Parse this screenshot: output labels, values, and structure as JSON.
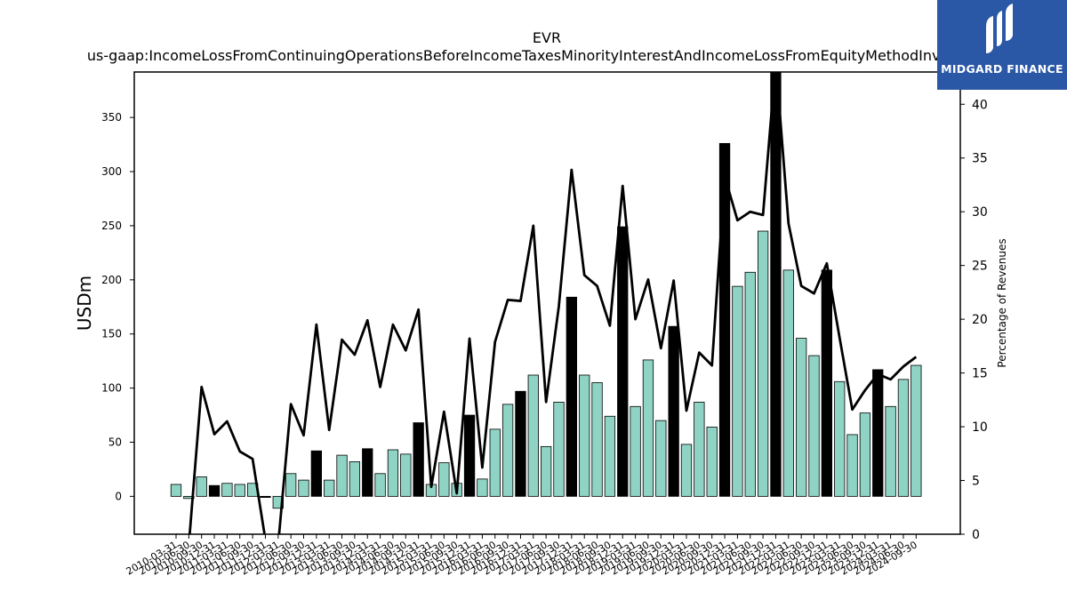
{
  "brand": {
    "name": "MIDGARD FINANCE",
    "bg_color": "#2a58a6"
  },
  "chart_data": {
    "type": "bar",
    "title": "EVR",
    "subtitle": "us-gaap:IncomeLossFromContinuingOperationsBeforeIncomeTaxesMinorityInterestAndIncomeLossFromEquityMethodInvestments",
    "ylabel": "USDm",
    "y2label": "Percentage of Revenues",
    "ylim": [
      -35,
      392
    ],
    "y2lim": [
      0,
      43
    ],
    "yticks": [
      0,
      50,
      100,
      150,
      200,
      250,
      300,
      350
    ],
    "y2ticks": [
      0,
      5,
      10,
      15,
      20,
      25,
      30,
      35,
      40
    ],
    "colors": {
      "quarter_bar": "#8fd3c4",
      "q4_bar": "#000000",
      "line": "#000000"
    },
    "categories": [
      "2010-03-31",
      "2010-06-30",
      "2010-09-30",
      "2010-12-31",
      "2011-03-31",
      "2011-06-30",
      "2011-09-30",
      "2011-12-31",
      "2012-03-31",
      "2012-06-30",
      "2012-09-30",
      "2012-12-31",
      "2013-03-31",
      "2013-06-30",
      "2013-09-30",
      "2013-12-31",
      "2014-03-31",
      "2014-06-30",
      "2014-09-30",
      "2014-12-31",
      "2015-03-31",
      "2015-06-30",
      "2015-09-30",
      "2015-12-31",
      "2016-03-31",
      "2016-06-30",
      "2016-09-30",
      "2016-12-31",
      "2017-03-31",
      "2017-06-30",
      "2017-09-30",
      "2017-12-31",
      "2018-03-31",
      "2018-06-30",
      "2018-09-30",
      "2018-12-31",
      "2019-03-31",
      "2019-06-30",
      "2019-09-30",
      "2019-12-31",
      "2020-03-31",
      "2020-06-30",
      "2020-09-30",
      "2020-12-31",
      "2021-03-31",
      "2021-06-30",
      "2021-09-30",
      "2021-12-31",
      "2022-03-31",
      "2022-06-30",
      "2022-09-30",
      "2022-12-31",
      "2023-03-31",
      "2023-06-30",
      "2023-09-30",
      "2023-12-31",
      "2024-03-31",
      "2024-06-30",
      "2024-09-30"
    ],
    "series": [
      {
        "kind": "bar",
        "values": [
          11,
          -2,
          18,
          10,
          12,
          11,
          12,
          -1,
          -11,
          21,
          15,
          42,
          15,
          38,
          32,
          44,
          21,
          43,
          39,
          68,
          11,
          31,
          12,
          75,
          16,
          62,
          85,
          97,
          112,
          46,
          87,
          184,
          112,
          105,
          74,
          249,
          83,
          126,
          70,
          157,
          48,
          87,
          64,
          326,
          194,
          207,
          245,
          392,
          209,
          146,
          130,
          209,
          106,
          57,
          77,
          117,
          83,
          108,
          121
        ],
        "year_end": [
          false,
          false,
          false,
          true,
          false,
          false,
          false,
          true,
          false,
          false,
          false,
          true,
          false,
          false,
          false,
          true,
          false,
          false,
          false,
          true,
          false,
          false,
          false,
          true,
          false,
          false,
          false,
          true,
          false,
          false,
          false,
          true,
          false,
          false,
          false,
          true,
          false,
          false,
          false,
          true,
          false,
          false,
          false,
          true,
          false,
          false,
          false,
          true,
          false,
          false,
          false,
          true,
          false,
          false,
          false,
          true,
          false,
          false,
          false
        ]
      },
      {
        "kind": "line",
        "axis": "right",
        "values": [
          0.0,
          -1.0,
          13.7,
          9.3,
          10.5,
          7.7,
          7.0,
          -0.5,
          -1.0,
          12.1,
          9.2,
          19.5,
          9.7,
          18.1,
          16.7,
          19.9,
          13.7,
          19.5,
          17.1,
          20.9,
          4.4,
          11.4,
          3.8,
          18.2,
          6.2,
          17.9,
          21.8,
          21.7,
          28.7,
          12.3,
          21.2,
          33.9,
          24.1,
          23.1,
          19.4,
          32.4,
          20.0,
          23.7,
          17.3,
          23.6,
          11.5,
          16.9,
          15.7,
          33.3,
          29.2,
          30.0,
          29.7,
          44.0,
          28.9,
          23.1,
          22.4,
          25.2,
          18.3,
          11.6,
          13.4,
          14.9,
          14.4,
          15.6,
          16.5
        ]
      }
    ]
  }
}
